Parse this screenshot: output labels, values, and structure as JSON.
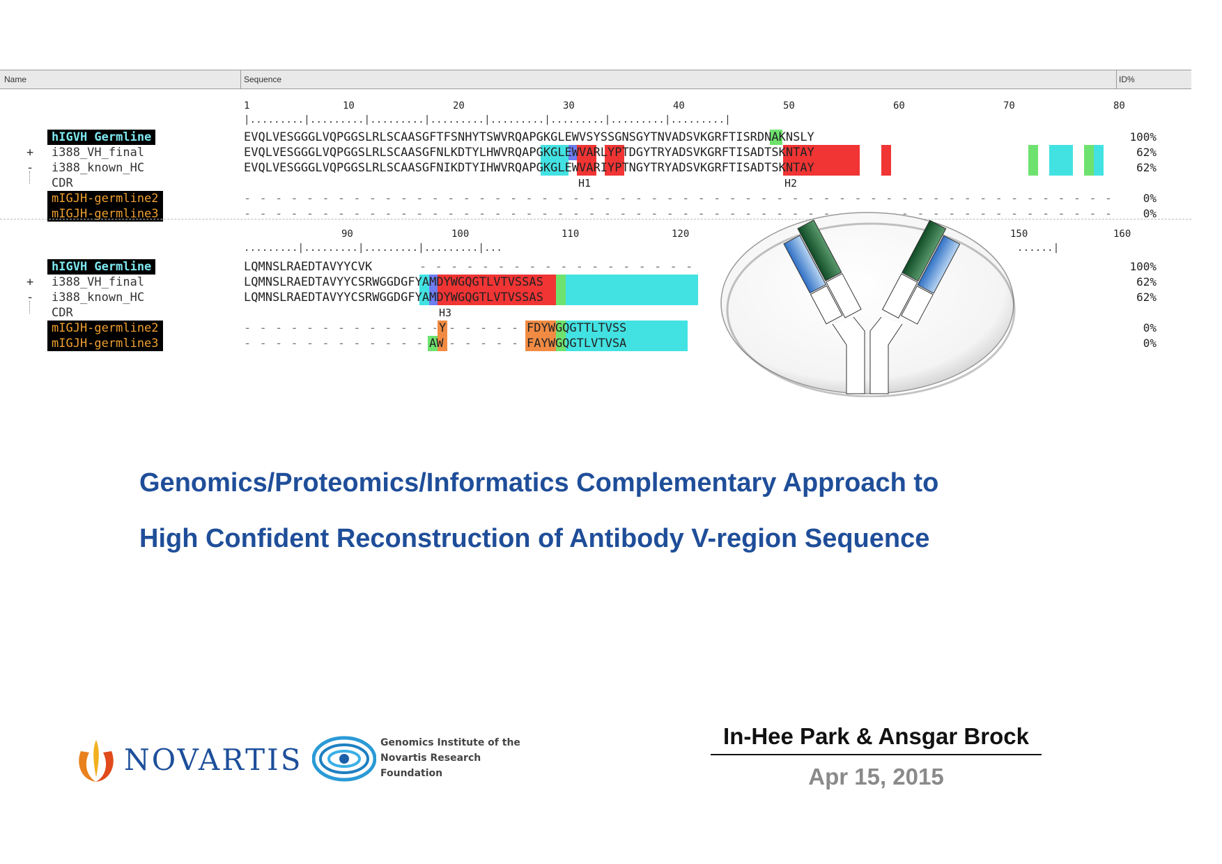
{
  "alignment": {
    "header": {
      "name_col": "Name",
      "sequence_col": "Sequence",
      "pct_col": "ID%"
    },
    "block1": {
      "ruler": [
        "1",
        "10",
        "20",
        "30",
        "40",
        "50",
        "60",
        "70",
        "80"
      ],
      "rows": [
        {
          "prefix": "",
          "label": "hIGVH Germline",
          "style": "cyan",
          "seq": "EVQLVESGGGLVQPGGSLRLSCAASGFTFSNHYTSWVRQAPGKGLEWVSYSSGNSGYTNVADSVKGRFTISRDNAKNSLY",
          "pct": "100%"
        },
        {
          "prefix": "+",
          "label": "i388_VH_final",
          "style": "plain",
          "seq": "EVQLVESGGGLVQPGGSLRLSCAASGFNLKDTYLHWVRQAPGKGLEWVARLYPTDGYTRYADSVKGRFTISADTSKNTAY",
          "pct": "62%"
        },
        {
          "prefix": "-",
          "label": "i388_known_HC",
          "style": "plain",
          "seq": "EVQLVESGGGLVQPGGSLRLSCAASGFNIKDTYIHWVRQAPGKGLEWVARIYPTNGYTRYADSVKGRFTISADTSKNTAY",
          "pct": "62%"
        },
        {
          "prefix": "",
          "label": "CDR",
          "style": "plain",
          "seq": "",
          "pct": ""
        },
        {
          "prefix": "",
          "label": "mIGJH-germline2",
          "style": "orange",
          "seq": "",
          "pct": "0%"
        },
        {
          "prefix": "",
          "label": "mIGJH-germline3",
          "style": "orange",
          "seq": "",
          "pct": "0%"
        }
      ],
      "cdr_marks": [
        "H1",
        "H2"
      ]
    },
    "block2": {
      "ruler": [
        "90",
        "100",
        "110",
        "120",
        "150",
        "160"
      ],
      "rows": [
        {
          "prefix": "",
          "label": "hIGVH Germline",
          "style": "cyan",
          "seq": "LQMNSLRAEDTAVYYCVK",
          "pct": "100%"
        },
        {
          "prefix": "+",
          "label": "i388_VH_final",
          "style": "plain",
          "seq": "LQMNSLRAEDTAVYYCSRWGGDGFYAMDYWGQGTLVTVSSAS",
          "pct": "62%"
        },
        {
          "prefix": "-",
          "label": "i388_known_HC",
          "style": "plain",
          "seq": "LQMNSLRAEDTAVYYCSRWGGDGFYAMDYWGQGTLVTVSSAS",
          "pct": "62%"
        },
        {
          "prefix": "",
          "label": "CDR",
          "style": "plain",
          "seq": "",
          "pct": ""
        },
        {
          "prefix": "",
          "label": "mIGJH-germline2",
          "style": "orange",
          "seq": "Y",
          "seq2": "FDYWGQGTTLTVSS",
          "pct": "0%"
        },
        {
          "prefix": "",
          "label": "mIGJH-germline3",
          "style": "orange",
          "seq": "AW",
          "seq2": "FAYWGQGTLVTVSA",
          "pct": "0%"
        }
      ],
      "cdr_marks": [
        "H3"
      ]
    }
  },
  "title": {
    "line1": "Genomics/Proteomics/Informatics Complementary Approach to",
    "line2": "High Confident Reconstruction of Antibody V-region Sequence"
  },
  "logos": {
    "novartis": "NOVARTIS",
    "gnf_line1": "Genomics Institute of the",
    "gnf_line2": "Novartis Research",
    "gnf_line3": "Foundation"
  },
  "authors": "In-Hee Park & Ansgar Brock",
  "date": "Apr 15, 2015",
  "colors": {
    "title": "#1f4e99",
    "novartis_blue": "#1d4f9a",
    "highlight_red": "#ee1111",
    "highlight_cyan": "#22dddd",
    "highlight_green": "#55dd55",
    "antibody_green": "#1d5c34",
    "antibody_blue": "#4d8fd6"
  }
}
